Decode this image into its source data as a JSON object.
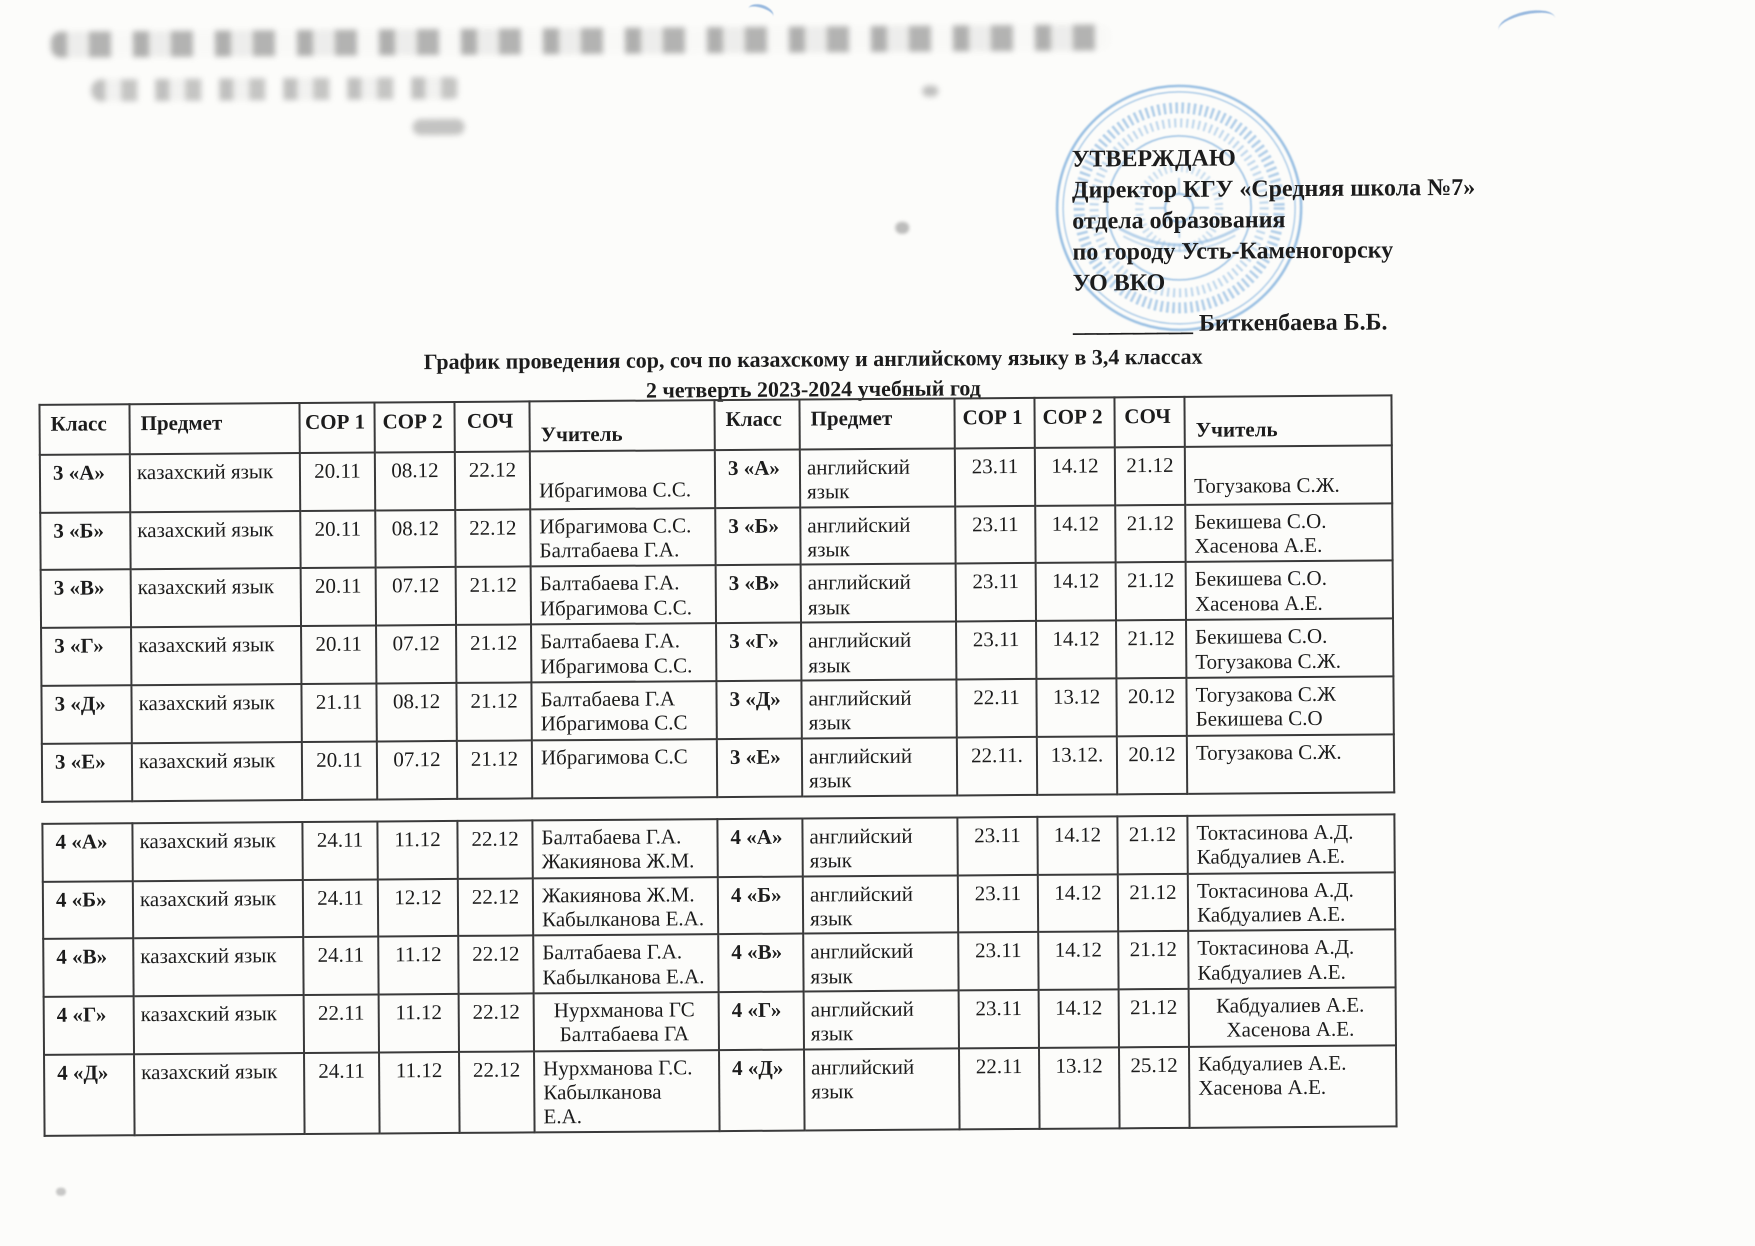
{
  "approval": {
    "line1": "УТВЕРЖДАЮ",
    "line2": "Директор КГУ «Средняя школа №7»",
    "line3": "отдела образования",
    "line4": "по городу Усть-Каменогорску",
    "line5": "УО ВКО",
    "signature": "__________ Биткенбаева Б.Б."
  },
  "title": {
    "line1": "График проведения сор, соч по казахскому и английскому языку в 3,4 классах",
    "line2": "2 четверть 2023-2024 учебный год"
  },
  "colors": {
    "stamp_blue": "#4a8fd0",
    "ink": "#1c1c1c"
  },
  "table": {
    "headers": [
      "Класс",
      "Предмет",
      "СОР 1",
      "СОР 2",
      "СОЧ",
      "Учитель"
    ],
    "grade3": {
      "rows": [
        {
          "left": {
            "klass": "3 «А»",
            "subject": "казахский язык",
            "sor1": "20.11",
            "sor2": "08.12",
            "soch": "22.12",
            "teacher": [
              "Ибрагимова С.С."
            ]
          },
          "right": {
            "klass": "3 «А»",
            "subject": "английский язык",
            "sor1": "23.11",
            "sor2": "14.12",
            "soch": "21.12",
            "teacher": [
              "Тогузакова С.Ж."
            ]
          }
        },
        {
          "left": {
            "klass": "3 «Б»",
            "subject": "казахский язык",
            "sor1": "20.11",
            "sor2": "08.12",
            "soch": "22.12",
            "teacher": [
              "Ибрагимова С.С.",
              "Балтабаева Г.А."
            ]
          },
          "right": {
            "klass": "3 «Б»",
            "subject": "английский язык",
            "sor1": "23.11",
            "sor2": "14.12",
            "soch": "21.12",
            "teacher": [
              "Бекишева С.О.",
              "Хасенова А.Е."
            ]
          }
        },
        {
          "left": {
            "klass": "3 «В»",
            "subject": "казахский язык",
            "sor1": "20.11",
            "sor2": "07.12",
            "soch": "21.12",
            "teacher": [
              "Балтабаева Г.А.",
              "Ибрагимова С.С."
            ]
          },
          "right": {
            "klass": "3 «В»",
            "subject": "английский язык",
            "sor1": "23.11",
            "sor2": "14.12",
            "soch": "21.12",
            "teacher": [
              "Бекишева С.О.",
              "Хасенова А.Е."
            ]
          }
        },
        {
          "left": {
            "klass": "3 «Г»",
            "subject": "казахский язык",
            "sor1": "20.11",
            "sor2": "07.12",
            "soch": "21.12",
            "teacher": [
              "Балтабаева Г.А.",
              "Ибрагимова С.С."
            ]
          },
          "right": {
            "klass": "3 «Г»",
            "subject": "английский язык",
            "sor1": "23.11",
            "sor2": "14.12",
            "soch": "21.12",
            "teacher": [
              "Бекишева С.О.",
              "Тогузакова С.Ж."
            ]
          }
        },
        {
          "left": {
            "klass": "3 «Д»",
            "subject": "казахский язык",
            "sor1": "21.11",
            "sor2": "08.12",
            "soch": "21.12",
            "teacher": [
              "Балтабаева Г.А",
              "Ибрагимова С.С"
            ]
          },
          "right": {
            "klass": "3 «Д»",
            "subject": "английский язык",
            "sor1": "22.11",
            "sor2": "13.12",
            "soch": "20.12",
            "teacher": [
              "Тогузакова С.Ж",
              "Бекишева С.О"
            ]
          }
        },
        {
          "left": {
            "klass": "3 «Е»",
            "subject": "казахский язык",
            "sor1": "20.11",
            "sor2": "07.12",
            "soch": "21.12",
            "teacher": [
              "Ибрагимова С.С"
            ]
          },
          "right": {
            "klass": "3 «Е»",
            "subject": "английский язык",
            "sor1": "22.11.",
            "sor2": "13.12.",
            "soch": "20.12",
            "teacher": [
              "Тогузакова С.Ж."
            ]
          }
        }
      ]
    },
    "grade4": {
      "rows": [
        {
          "left": {
            "klass": "4 «А»",
            "subject": "казахский язык",
            "sor1": "24.11",
            "sor2": "11.12",
            "soch": "22.12",
            "teacher": [
              "Балтабаева Г.А.",
              "Жакиянова Ж.М."
            ]
          },
          "right": {
            "klass": "4 «А»",
            "subject": "английский язык",
            "sor1": "23.11",
            "sor2": "14.12",
            "soch": "21.12",
            "teacher": [
              "Токтасинова А.Д.",
              "Кабдуалиев А.Е."
            ]
          }
        },
        {
          "left": {
            "klass": "4 «Б»",
            "subject": "казахский язык",
            "sor1": "24.11",
            "sor2": "12.12",
            "soch": "22.12",
            "teacher": [
              "Жакиянова Ж.М.",
              "Кабылканова Е.А."
            ]
          },
          "right": {
            "klass": "4 «Б»",
            "subject": "английский язык",
            "sor1": "23.11",
            "sor2": "14.12",
            "soch": "21.12",
            "teacher": [
              "Токтасинова А.Д.",
              "Кабдуалиев А.Е."
            ]
          }
        },
        {
          "left": {
            "klass": "4 «В»",
            "subject": "казахский язык",
            "sor1": "24.11",
            "sor2": "11.12",
            "soch": "22.12",
            "teacher": [
              "Балтабаева Г.А.",
              "Кабылканова Е.А."
            ]
          },
          "right": {
            "klass": "4 «В»",
            "subject": "английский язык",
            "sor1": "23.11",
            "sor2": "14.12",
            "soch": "21.12",
            "teacher": [
              "Токтасинова А.Д.",
              "Кабдуалиев А.Е."
            ]
          }
        },
        {
          "left": {
            "klass": "4 «Г»",
            "subject": "казахский язык",
            "sor1": "22.11",
            "sor2": "11.12",
            "soch": "22.12",
            "teacher": [
              "Нурхманова ГС",
              "Балтабаева ГА"
            ],
            "teacher_align": "center"
          },
          "right": {
            "klass": "4 «Г»",
            "subject": "английский язык",
            "sor1": "23.11",
            "sor2": "14.12",
            "soch": "21.12",
            "teacher": [
              "Кабдуалиев А.Е.",
              "Хасенова А.Е."
            ],
            "teacher_align": "center"
          }
        },
        {
          "left": {
            "klass": "4 «Д»",
            "subject": "казахский язык",
            "sor1": "24.11",
            "sor2": "11.12",
            "soch": "22.12",
            "teacher": [
              "Нурхманова Г.С.",
              "Кабылканова",
              "Е.А."
            ]
          },
          "right": {
            "klass": "4 «Д»",
            "subject": "английский язык",
            "sor1": "22.11",
            "sor2": "13.12",
            "soch": "25.12",
            "teacher": [
              "Кабдуалиев А.Е.",
              "Хасенова А.Е."
            ]
          }
        }
      ]
    }
  }
}
